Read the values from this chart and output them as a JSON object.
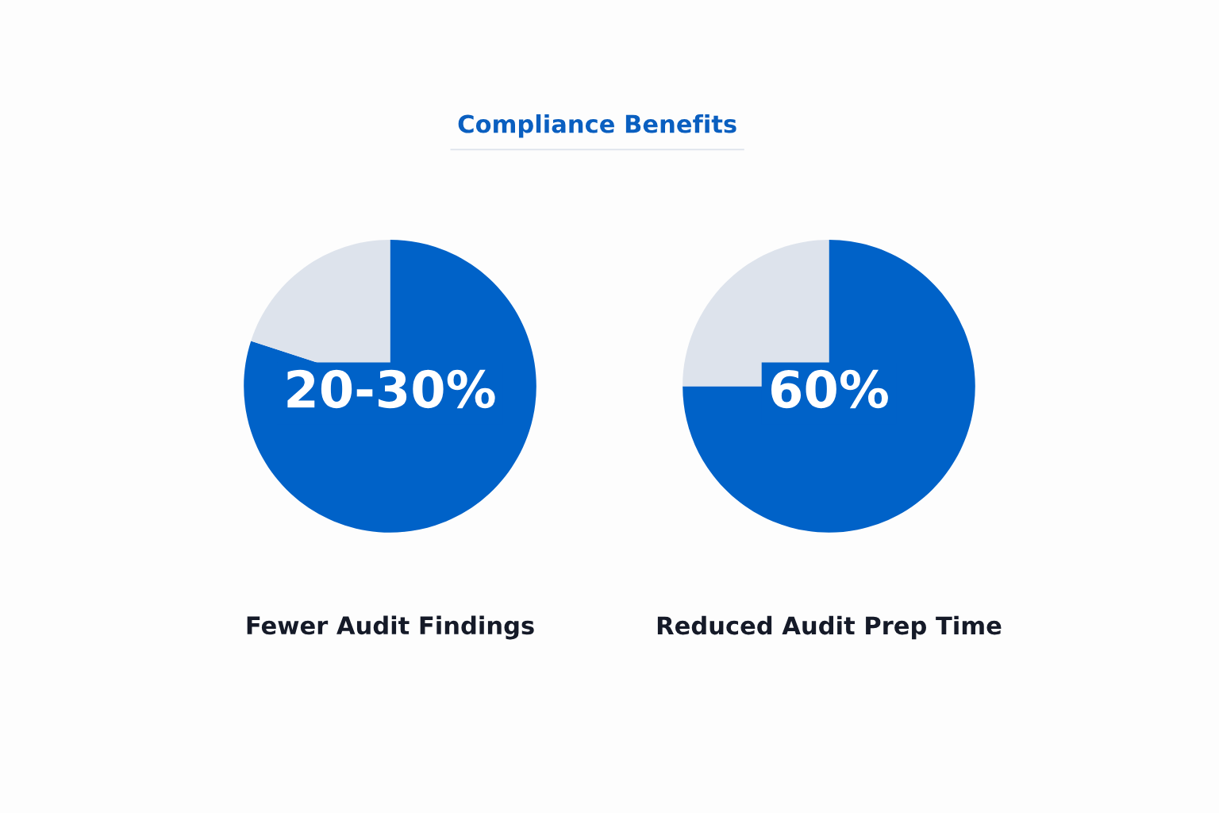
{
  "chart_data": [
    {
      "type": "pie",
      "title": "Compliance Benefits",
      "xlabel": "Fewer Audit Findings",
      "categories": [
        null,
        null
      ],
      "values": [
        80,
        20
      ],
      "colors": [
        "#0062c8",
        "#dde3ec"
      ],
      "annotations": [
        "20-30%"
      ]
    },
    {
      "type": "pie",
      "xlabel": "Reduced Audit Prep Time",
      "categories": [
        null,
        null
      ],
      "values": [
        75,
        25
      ],
      "colors": [
        "#0062c8",
        "#dde3ec"
      ],
      "annotations": [
        "60%"
      ]
    }
  ]
}
